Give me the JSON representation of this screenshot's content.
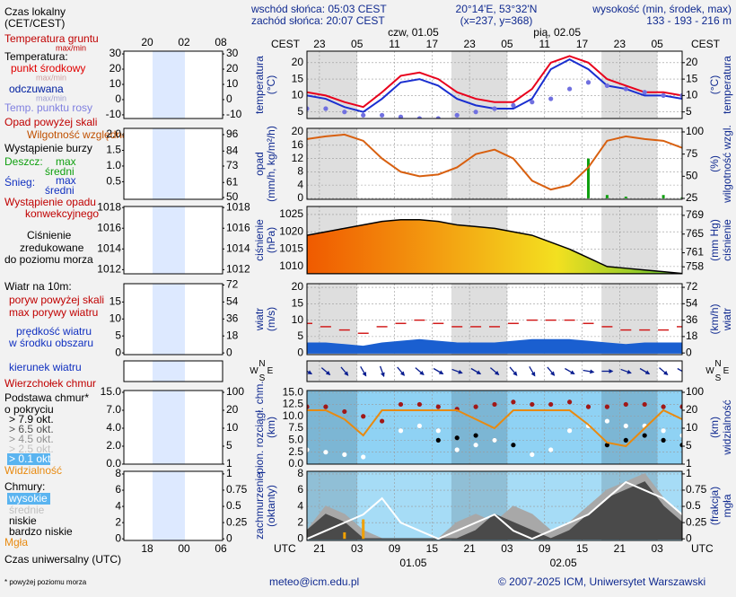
{
  "header": {
    "sunrise": "wschód słońca: 05:03 CEST",
    "sunset": "zachód słońca: 20:07 CEST",
    "coords": "20°14'E, 53°32'N",
    "grid_point": "(x=237, y=368)",
    "height_title": "wysokość (min, środek, max)",
    "height_values": "133 - 193 - 216 m"
  },
  "footer": {
    "email": "meteo@icm.edu.pl",
    "copyright": "© 2007-2025 ICM, Uniwersytet Warszawski"
  },
  "legend": [
    "Czas lokalny",
    "(CET/CEST)",
    "Temperatura gruntu",
    "max/min",
    "Temperatura:",
    "punkt środkowy",
    "max/min",
    "odczuwana",
    "max/min",
    "Temp. punktu rosy",
    "Opad powyżej skali",
    "Wilgotność względna",
    "Wystąpienie burzy",
    "Deszcz:",
    "max",
    "średni",
    "Śnieg:",
    "max",
    "średni",
    "Wystąpienie opadu",
    "konwekcyjnego",
    "Ciśnienie",
    "zredukowane",
    "do poziomu morza",
    "Wiatr na 10m:",
    "poryw powyżej skali",
    "max porywy wiatru",
    "prędkość wiatru",
    "w środku obszaru",
    "kierunek wiatru",
    "Wierzchołek chmur",
    "Podstawa chmur*",
    "o pokryciu",
    "> 7.9 okt.",
    "> 6.5 okt.",
    "> 4.5 okt.",
    "> 2.5 okt.",
    "> 0.1 okt.",
    "Widzialność",
    "Chmury:",
    "wysokie",
    "średnie",
    "niskie",
    "bardzo niskie",
    "Mgła",
    "Czas uniwersalny (UTC)",
    "* powyżej poziomu morza"
  ],
  "mini_time_top": [
    "20",
    "02",
    "08"
  ],
  "mini_time_bottom": [
    "18",
    "00",
    "06"
  ],
  "time_axis": {
    "xlim": [
      0,
      60
    ],
    "x": [
      0,
      3,
      6,
      9,
      12,
      15,
      18,
      21,
      24,
      27,
      30,
      33,
      36,
      39,
      42,
      45,
      48,
      51,
      54,
      57,
      60
    ],
    "cest_label": "CEST",
    "utc_label": "UTC",
    "cest_ticks": [
      {
        "value": 2,
        "label": "23"
      },
      {
        "value": 8,
        "label": "05"
      },
      {
        "value": 14,
        "label": "11"
      },
      {
        "value": 20,
        "label": "17"
      },
      {
        "value": 26,
        "label": "23"
      },
      {
        "value": 32,
        "label": "05"
      },
      {
        "value": 38,
        "label": "11"
      },
      {
        "value": 44,
        "label": "17"
      },
      {
        "value": 50,
        "label": "23"
      },
      {
        "value": 56,
        "label": "05"
      }
    ],
    "utc_ticks": [
      {
        "value": 2,
        "label": "21"
      },
      {
        "value": 8,
        "label": "03"
      },
      {
        "value": 14,
        "label": "09"
      },
      {
        "value": 20,
        "label": "15"
      },
      {
        "value": 26,
        "label": "21"
      },
      {
        "value": 32,
        "label": "03"
      },
      {
        "value": 38,
        "label": "09"
      },
      {
        "value": 44,
        "label": "15"
      },
      {
        "value": 50,
        "label": "21"
      },
      {
        "value": 56,
        "label": "03"
      }
    ],
    "dates_top": [
      {
        "value": 17,
        "label": "czw, 01.05"
      },
      {
        "value": 40,
        "label": "pią, 02.05"
      }
    ],
    "dates_bottom": [
      {
        "value": 17,
        "label": "01.05"
      },
      {
        "value": 41,
        "label": "02.05"
      }
    ],
    "night": [
      [
        -0.9,
        8.05
      ],
      [
        23.1,
        32.05
      ],
      [
        47.1,
        56.05
      ]
    ]
  },
  "chart_data": [
    {
      "type": "line",
      "ylabel": [
        "temperatura",
        "(°C)"
      ],
      "y2label": [
        "(°C)",
        "temperatura"
      ],
      "ylim": [
        3,
        23.5
      ],
      "yticks": [
        5,
        10,
        15,
        20
      ],
      "y2lim": [
        3,
        23.5
      ],
      "y2ticks": [
        5,
        10,
        15,
        20
      ],
      "grid": true,
      "series": [
        {
          "color": "#1a2fd0",
          "values": [
            10,
            9,
            6.5,
            5,
            9,
            14,
            15,
            13,
            9,
            7,
            6,
            6,
            9,
            18,
            21,
            18,
            13,
            12,
            10,
            10,
            9
          ]
        },
        {
          "color": "#e8001c",
          "values": [
            11,
            10,
            8,
            6.5,
            11,
            16,
            17,
            15,
            11,
            9,
            8,
            8,
            12,
            20,
            22,
            20,
            15,
            13,
            11,
            11,
            10
          ]
        },
        {
          "type": "dots",
          "color": "#7070e0",
          "values": [
            6,
            6,
            5,
            4,
            4,
            3.5,
            3,
            3,
            4,
            5,
            6,
            7,
            8,
            9,
            12,
            14,
            13,
            12,
            11,
            10,
            10
          ]
        }
      ],
      "mini": {
        "ylim": [
          -12.4,
          31.8
        ],
        "yticks": [
          -10,
          0,
          10,
          20,
          30
        ],
        "y2lim": [
          -12.4,
          31.8
        ],
        "y2ticks": [
          -10,
          0,
          10,
          20,
          30
        ]
      }
    },
    {
      "type": "bar",
      "ylabel": [
        "opad",
        "(mm/h, kg/m²/h)"
      ],
      "y2label": [
        "(%)",
        "wilgotność wzgl."
      ],
      "ylim": [
        -0.3,
        21.1
      ],
      "yticks": [
        0,
        4,
        8,
        12,
        16,
        20
      ],
      "y2lim": [
        24,
        104
      ],
      "y2ticks": [
        25,
        50,
        75,
        100
      ],
      "grid": true,
      "series": [
        {
          "type": "bar",
          "color": "#10a010",
          "values": [
            0,
            0,
            0,
            0,
            0,
            0,
            0,
            0,
            0,
            0,
            0,
            0,
            0,
            0,
            0,
            12,
            1,
            0.5,
            0,
            1,
            0.3
          ]
        },
        {
          "type": "line",
          "axis": "y2",
          "color": "#d86010",
          "values": [
            92,
            95,
            97,
            90,
            70,
            55,
            50,
            52,
            60,
            75,
            80,
            70,
            45,
            35,
            40,
            60,
            90,
            95,
            92,
            90,
            82
          ]
        }
      ],
      "mini": {
        "ylim": [
          -0.06,
          2.2
        ],
        "yticks": [
          0.5,
          {
            "value": 1,
            "label": "1.0"
          },
          1.5,
          {
            "value": 2,
            "label": "2.0"
          }
        ],
        "y2lim": [
          48.7,
          100.6
        ],
        "y2ticks": [
          50,
          61,
          73,
          84,
          96
        ]
      }
    },
    {
      "type": "area",
      "ylabel": [
        "ciśnienie",
        "(hPa)"
      ],
      "y2label": [
        "(mm Hg)",
        "ciśnienie"
      ],
      "ylim": [
        1007.9,
        1027.3
      ],
      "yticks": [
        1010,
        1015,
        1020,
        1025
      ],
      "y2lim": [
        756.5,
        770.9
      ],
      "y2ticks": [
        758,
        761,
        765,
        769
      ],
      "grid": true,
      "fill_colors": [
        "#f05a00",
        "#f39a10",
        "#f3e020",
        "#60c030"
      ],
      "series": [
        {
          "type": "area",
          "color": "#000000",
          "fill": "gradient",
          "values": [
            1019,
            1020,
            1021,
            1022,
            1023,
            1023.5,
            1023.5,
            1023,
            1022,
            1021.5,
            1021,
            1020,
            1019,
            1017,
            1015,
            1012.5,
            1010,
            1009.5,
            1009,
            1008.5,
            1008
          ]
        }
      ],
      "mini": {
        "ylim": [
          1011.6,
          1018.1
        ],
        "yticks": [
          1012,
          1014,
          1016,
          1018
        ],
        "y2lim": [
          1011.6,
          1018.1
        ],
        "y2ticks": [
          1012,
          1014,
          1016,
          1018
        ]
      }
    },
    {
      "type": "area",
      "ylabel": [
        "wiatr",
        "(m/s)"
      ],
      "y2label": [
        "(km/h)",
        "wiatr"
      ],
      "ylim": [
        -0.5,
        21.1
      ],
      "yticks": [
        0,
        5,
        10,
        15,
        20
      ],
      "y2lim": [
        -1.8,
        76
      ],
      "y2ticks": [
        0,
        18,
        36,
        54,
        72
      ],
      "grid": true,
      "series": [
        {
          "type": "area",
          "color": "#1a5fd0",
          "values": [
            3,
            3,
            2.5,
            2,
            3,
            3.5,
            4,
            3.5,
            3,
            3,
            3,
            3.5,
            4,
            4,
            4,
            3.5,
            3,
            2.5,
            3,
            3,
            3
          ]
        },
        {
          "type": "dash",
          "color": "#d01010",
          "values": [
            9,
            8,
            7,
            6,
            8,
            9,
            10,
            9,
            8,
            8,
            8,
            9,
            10,
            10,
            10,
            9,
            8,
            7,
            7,
            7,
            8
          ]
        }
      ],
      "mini": {
        "ylim": [
          -0.5,
          20.4
        ],
        "yticks": [
          0,
          5,
          10,
          15
        ],
        "y2lim": [
          -1.8,
          73.4
        ],
        "y2ticks": [
          0,
          18,
          36,
          54,
          72
        ]
      }
    },
    {
      "type": "wind-direction",
      "compass": [
        "N",
        "W",
        "S",
        "E"
      ],
      "color": "#0a1e90",
      "values": [
        300,
        310,
        320,
        330,
        340,
        320,
        310,
        300,
        290,
        300,
        310,
        320,
        330,
        320,
        300,
        280,
        270,
        290,
        300,
        310,
        300
      ]
    },
    {
      "type": "scatter",
      "ylabel": [
        "pion. rozciągł. chm.",
        "(km)"
      ],
      "y2label": [
        "(km)",
        "widzialność"
      ],
      "background": "#8fd2f4",
      "ylim": [
        0,
        15.4
      ],
      "yticks": [
        {
          "value": 0,
          "label": "0.0"
        },
        2.5,
        {
          "value": 5,
          "label": "5.0"
        },
        7.5,
        {
          "value": 10,
          "label": "10.0"
        },
        12.5,
        {
          "value": 15,
          "label": "15.0"
        }
      ],
      "y2lim": [
        1,
        100
      ],
      "y2ticks": [
        1,
        5,
        10,
        20,
        100
      ],
      "y2_tick_spacing": "even",
      "grid": true,
      "series": [
        {
          "type": "dots",
          "color": "#a01818",
          "values": [
            12,
            12,
            11,
            10,
            9,
            12.5,
            12.5,
            12,
            11.5,
            12,
            12.5,
            13,
            12.5,
            12.5,
            13,
            12,
            12,
            12.5,
            12.5,
            12,
            12
          ]
        },
        {
          "type": "dots",
          "color": "#000000",
          "values": [
            null,
            null,
            null,
            null,
            null,
            null,
            null,
            5,
            5.5,
            6,
            5,
            4,
            null,
            null,
            null,
            null,
            4,
            5,
            6,
            5,
            4
          ]
        },
        {
          "type": "dots",
          "color": "#ffffff",
          "values": [
            3,
            2.5,
            2,
            1.5,
            null,
            7,
            8,
            7,
            3,
            4,
            5,
            null,
            2,
            3,
            7,
            8,
            9,
            8,
            8,
            7,
            6
          ]
        },
        {
          "type": "line",
          "axis": "y2",
          "color": "#e88a10",
          "values": [
            20,
            20,
            15,
            8,
            20,
            20,
            20,
            20,
            20,
            15,
            10,
            20,
            20,
            20,
            20,
            12,
            6,
            5,
            10,
            20,
            15
          ]
        }
      ],
      "mini": {
        "ylim": [
          0,
          15
        ],
        "yticks": [
          {
            "value": 0,
            "label": "0.0"
          },
          {
            "value": 2,
            "label": "2.0"
          },
          {
            "value": 4,
            "label": "4.0"
          },
          {
            "value": 7,
            "label": "7.0"
          },
          {
            "value": 15,
            "label": "15.0"
          }
        ],
        "y_tick_spacing": "even",
        "y2lim": [
          1,
          100
        ],
        "y2ticks": [
          1,
          5,
          10,
          20,
          100
        ],
        "y2_tick_spacing": "even"
      }
    },
    {
      "type": "area",
      "ylabel": [
        "zachmurzenie",
        "(oktanty)"
      ],
      "y2label": [
        "(frakcja)",
        "mgła"
      ],
      "background": "#a6dcf6",
      "ylim": [
        -0.2,
        8.33
      ],
      "yticks": [
        0,
        2,
        4,
        6,
        8
      ],
      "y2lim": [
        -0.025,
        1.04
      ],
      "y2ticks": [
        0,
        0.25,
        0.5,
        0.75,
        1
      ],
      "grid": true,
      "series": [
        {
          "type": "area",
          "color": "#a8a8a8",
          "values": [
            1,
            4,
            3,
            1,
            0,
            0,
            0,
            0,
            2,
            3,
            2,
            4,
            3,
            1,
            2,
            4,
            6,
            7,
            8,
            5,
            3
          ]
        },
        {
          "type": "area",
          "color": "#4a4a4a",
          "values": [
            1,
            3,
            2,
            0,
            0,
            0,
            0,
            0,
            0,
            1,
            3,
            2,
            1,
            0,
            1,
            3,
            5,
            6,
            7,
            4,
            2
          ]
        },
        {
          "type": "line",
          "color": "#ffffff",
          "values": [
            0,
            1,
            2,
            3,
            5,
            2,
            1,
            0,
            1,
            2,
            3,
            1,
            0,
            1,
            2,
            3,
            5,
            7,
            6,
            5,
            3
          ]
        },
        {
          "type": "bar",
          "axis": "y2",
          "color": "#f0a000",
          "values": [
            0,
            0,
            0.1,
            0.3,
            0,
            0,
            0,
            0,
            0,
            0,
            0,
            0,
            0,
            0,
            0,
            0,
            0,
            0,
            0,
            0,
            0
          ]
        }
      ],
      "mini": {
        "ylim": [
          -0.2,
          8.33
        ],
        "yticks": [
          0,
          2,
          4,
          6,
          8
        ],
        "y2lim": [
          -0.025,
          1.04
        ],
        "y2ticks": [
          0,
          0.25,
          0.5,
          0.75,
          1
        ]
      }
    }
  ]
}
